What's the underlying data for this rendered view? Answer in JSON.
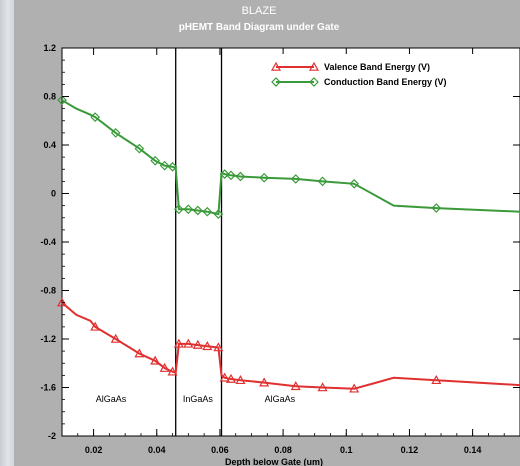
{
  "chart_data": {
    "type": "line",
    "title": "BLAZE",
    "subtitle": "pHEMT Band Diagram under Gate",
    "xlabel": "Depth below Gate (um)",
    "ylabel": "",
    "xlim": [
      0.01,
      0.155
    ],
    "ylim": [
      -2,
      1.2
    ],
    "x_ticks": [
      0.02,
      0.04,
      0.06,
      0.08,
      0.1,
      0.12,
      0.14
    ],
    "x_tick_labels": [
      "0.02",
      "0.04",
      "0.06",
      "0.08",
      "0.1",
      "0.12",
      "0.14"
    ],
    "y_ticks": [
      1.2,
      0.8,
      0.4,
      0,
      -0.4,
      -0.8,
      -1.2,
      -1.6,
      -2
    ],
    "y_tick_labels": [
      "1.2",
      "0.8",
      "0.4",
      "0",
      "-0.4",
      "-0.8",
      "-1.2",
      "-1.6",
      "-2"
    ],
    "grid": false,
    "legend_position": "top-right",
    "region_boundaries": [
      0.046,
      0.0605
    ],
    "regions": [
      {
        "label": "AlGaAs",
        "x": 0.0255
      },
      {
        "label": "InGaAs",
        "x": 0.053
      },
      {
        "label": "AlGaAs",
        "x": 0.079
      }
    ],
    "series": [
      {
        "name": "Valence Band Energy (V)",
        "color": "#e03030",
        "marker": "triangle",
        "x": [
          0.01,
          0.0145,
          0.019,
          0.0205,
          0.027,
          0.0345,
          0.0395,
          0.0425,
          0.045,
          0.046,
          0.047,
          0.05,
          0.053,
          0.056,
          0.0595,
          0.0605,
          0.0615,
          0.0635,
          0.0665,
          0.074,
          0.084,
          0.0925,
          0.1025,
          0.115,
          0.1285,
          0.155
        ],
        "y": [
          -0.9,
          -1.0,
          -1.05,
          -1.1,
          -1.2,
          -1.32,
          -1.38,
          -1.44,
          -1.47,
          -1.48,
          -1.24,
          -1.24,
          -1.25,
          -1.26,
          -1.27,
          -1.5,
          -1.52,
          -1.53,
          -1.54,
          -1.56,
          -1.59,
          -1.6,
          -1.61,
          -1.52,
          -1.54,
          -1.58
        ]
      },
      {
        "name": "Conduction Band Energy (V)",
        "color": "#3a9a3a",
        "marker": "diamond",
        "x": [
          0.01,
          0.0145,
          0.019,
          0.0205,
          0.027,
          0.0345,
          0.0395,
          0.0425,
          0.045,
          0.046,
          0.047,
          0.05,
          0.053,
          0.056,
          0.0595,
          0.0605,
          0.0615,
          0.0635,
          0.0665,
          0.074,
          0.084,
          0.0925,
          0.1025,
          0.115,
          0.1285,
          0.155
        ],
        "y": [
          0.77,
          0.7,
          0.65,
          0.63,
          0.5,
          0.37,
          0.27,
          0.23,
          0.22,
          0.21,
          -0.13,
          -0.13,
          -0.14,
          -0.15,
          -0.17,
          0.17,
          0.16,
          0.15,
          0.14,
          0.13,
          0.12,
          0.1,
          0.08,
          -0.1,
          -0.12,
          -0.15
        ]
      }
    ],
    "marker_x": [
      0.01,
      0.0205,
      0.027,
      0.0345,
      0.0395,
      0.0425,
      0.045,
      0.047,
      0.05,
      0.053,
      0.056,
      0.0595,
      0.0615,
      0.0635,
      0.0665,
      0.074,
      0.084,
      0.0925,
      0.1025,
      0.1285
    ]
  }
}
